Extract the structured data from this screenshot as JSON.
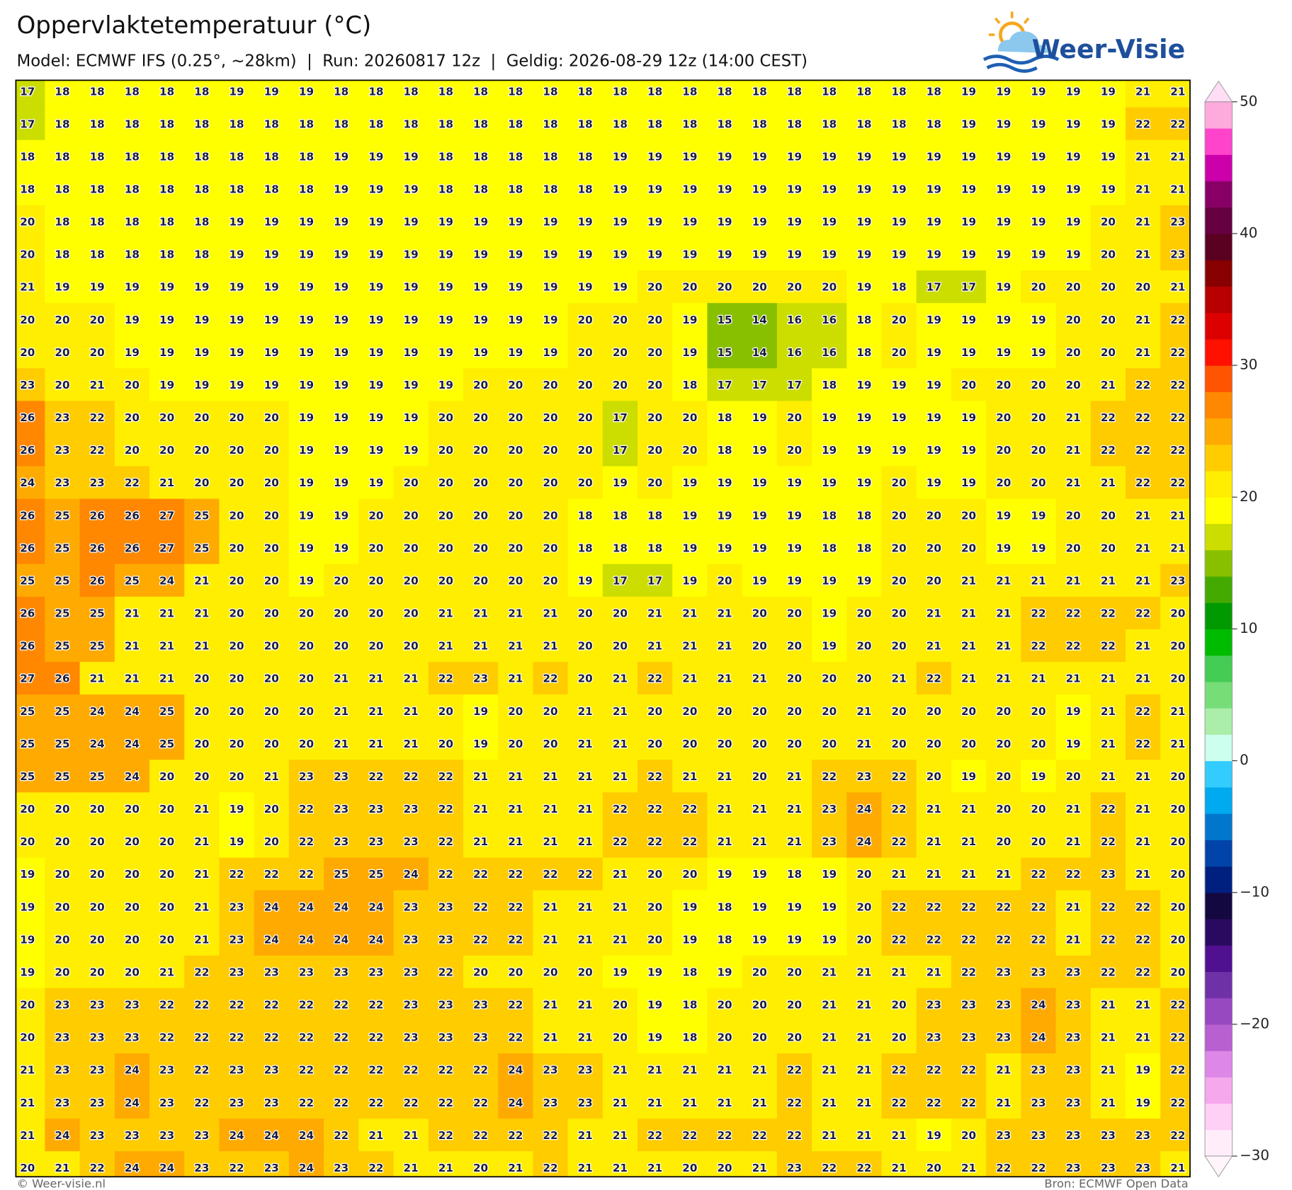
{
  "header": {
    "title": "Oppervlaktetemperatuur (°C)",
    "subtitle": "Model: ECMWF IFS (0.25°, ~28km)  |  Run: 20260817 12z  |  Geldig: 2026-08-29 12z (14:00 CEST)"
  },
  "logo": {
    "text": "Weer-Visie"
  },
  "footer": {
    "left": "© Weer-visie.nl",
    "right": "Bron: ECMWF Open Data"
  },
  "colorbar": {
    "clim": [
      -30,
      50
    ],
    "ticks": [
      {
        "value": -30,
        "label": "−30"
      },
      {
        "value": -20,
        "label": "−20"
      },
      {
        "value": -10,
        "label": "−10"
      },
      0,
      10,
      20,
      30,
      40,
      50
    ],
    "colors": [
      "#ffeefa",
      "#ffd0f5",
      "#f5a8ee",
      "#dd88e8",
      "#b860d0",
      "#9848c0",
      "#7030a8",
      "#501090",
      "#2a0a60",
      "#140840",
      "#002080",
      "#0044aa",
      "#0077cc",
      "#00aaee",
      "#33ccff",
      "#ccffee",
      "#aaeeaa",
      "#77dd77",
      "#44cc55",
      "#00bb00",
      "#009900",
      "#44aa00",
      "#88c000",
      "#ccdd00",
      "#ffff00",
      "#ffee00",
      "#ffcc00",
      "#ffaa00",
      "#ff8800",
      "#ff5500",
      "#ff1100",
      "#dd0000",
      "#b80000",
      "#880000",
      "#5a0020",
      "#660040",
      "#880066",
      "#cc00aa",
      "#ff44cc",
      "#ffaadd"
    ],
    "under": "#fff5fb",
    "over": "#ffddf5"
  },
  "grid": [
    [
      17,
      18,
      18,
      18,
      18,
      18,
      19,
      19,
      19,
      18,
      18,
      18,
      18,
      18,
      18,
      18,
      18,
      18,
      18,
      18,
      18,
      18,
      18,
      18,
      18,
      18,
      18,
      19,
      19,
      19,
      19,
      19,
      21,
      21
    ],
    [
      17,
      18,
      18,
      18,
      18,
      18,
      18,
      18,
      18,
      18,
      18,
      18,
      18,
      18,
      18,
      18,
      18,
      18,
      18,
      18,
      18,
      18,
      18,
      18,
      18,
      18,
      18,
      19,
      19,
      19,
      19,
      19,
      22,
      22
    ],
    [
      18,
      18,
      18,
      18,
      18,
      18,
      18,
      18,
      18,
      19,
      19,
      19,
      18,
      18,
      18,
      18,
      18,
      19,
      19,
      19,
      19,
      19,
      19,
      19,
      19,
      19,
      19,
      19,
      19,
      19,
      19,
      19,
      21,
      21
    ],
    [
      18,
      18,
      18,
      18,
      18,
      18,
      18,
      18,
      18,
      19,
      19,
      19,
      18,
      18,
      18,
      18,
      18,
      19,
      19,
      19,
      19,
      19,
      19,
      19,
      19,
      19,
      19,
      19,
      19,
      19,
      19,
      19,
      21,
      21
    ],
    [
      20,
      18,
      18,
      18,
      18,
      18,
      19,
      19,
      19,
      19,
      19,
      19,
      19,
      19,
      19,
      19,
      19,
      19,
      19,
      19,
      19,
      19,
      19,
      19,
      19,
      19,
      19,
      19,
      19,
      19,
      19,
      20,
      21,
      23
    ],
    [
      20,
      18,
      18,
      18,
      18,
      18,
      19,
      19,
      19,
      19,
      19,
      19,
      19,
      19,
      19,
      19,
      19,
      19,
      19,
      19,
      19,
      19,
      19,
      19,
      19,
      19,
      19,
      19,
      19,
      19,
      19,
      20,
      21,
      23
    ],
    [
      21,
      19,
      19,
      19,
      19,
      19,
      19,
      19,
      19,
      19,
      19,
      19,
      19,
      19,
      19,
      19,
      19,
      19,
      20,
      20,
      20,
      20,
      20,
      20,
      19,
      18,
      17,
      17,
      19,
      20,
      20,
      20,
      20,
      21
    ],
    [
      20,
      20,
      20,
      19,
      19,
      19,
      19,
      19,
      19,
      19,
      19,
      19,
      19,
      19,
      19,
      19,
      20,
      20,
      20,
      19,
      15,
      14,
      16,
      16,
      18,
      20,
      19,
      19,
      19,
      19,
      20,
      20,
      21,
      22
    ],
    [
      20,
      20,
      20,
      19,
      19,
      19,
      19,
      19,
      19,
      19,
      19,
      19,
      19,
      19,
      19,
      19,
      20,
      20,
      20,
      19,
      15,
      14,
      16,
      16,
      18,
      20,
      19,
      19,
      19,
      19,
      20,
      20,
      21,
      22
    ],
    [
      23,
      20,
      21,
      20,
      19,
      19,
      19,
      19,
      19,
      19,
      19,
      19,
      19,
      20,
      20,
      20,
      20,
      20,
      20,
      18,
      17,
      17,
      17,
      18,
      19,
      19,
      19,
      20,
      20,
      20,
      20,
      21,
      22,
      22
    ],
    [
      26,
      23,
      22,
      20,
      20,
      20,
      20,
      20,
      19,
      19,
      19,
      19,
      20,
      20,
      20,
      20,
      20,
      17,
      20,
      20,
      18,
      19,
      20,
      19,
      19,
      19,
      19,
      19,
      20,
      20,
      21,
      22,
      22,
      22
    ],
    [
      26,
      23,
      22,
      20,
      20,
      20,
      20,
      20,
      19,
      19,
      19,
      19,
      20,
      20,
      20,
      20,
      20,
      17,
      20,
      20,
      18,
      19,
      20,
      19,
      19,
      19,
      19,
      19,
      20,
      20,
      21,
      22,
      22,
      22
    ],
    [
      24,
      23,
      23,
      22,
      21,
      20,
      20,
      20,
      19,
      19,
      19,
      20,
      20,
      20,
      20,
      20,
      20,
      19,
      20,
      19,
      19,
      19,
      19,
      19,
      19,
      20,
      19,
      19,
      20,
      20,
      21,
      21,
      22,
      22
    ],
    [
      26,
      25,
      26,
      26,
      27,
      25,
      20,
      20,
      19,
      19,
      20,
      20,
      20,
      20,
      20,
      20,
      18,
      18,
      18,
      19,
      19,
      19,
      19,
      18,
      18,
      20,
      20,
      20,
      19,
      19,
      20,
      20,
      21,
      21
    ],
    [
      26,
      25,
      26,
      26,
      27,
      25,
      20,
      20,
      19,
      19,
      20,
      20,
      20,
      20,
      20,
      20,
      18,
      18,
      18,
      19,
      19,
      19,
      19,
      18,
      18,
      20,
      20,
      20,
      19,
      19,
      20,
      20,
      21,
      21
    ],
    [
      25,
      25,
      26,
      25,
      24,
      21,
      20,
      20,
      19,
      20,
      20,
      20,
      20,
      20,
      20,
      20,
      19,
      17,
      17,
      19,
      20,
      19,
      19,
      19,
      19,
      20,
      20,
      21,
      21,
      21,
      21,
      21,
      21,
      23
    ],
    [
      26,
      25,
      25,
      21,
      21,
      21,
      20,
      20,
      20,
      20,
      20,
      20,
      21,
      21,
      21,
      21,
      20,
      20,
      21,
      21,
      21,
      20,
      20,
      19,
      20,
      20,
      21,
      21,
      21,
      22,
      22,
      22,
      22,
      20
    ],
    [
      26,
      25,
      25,
      21,
      21,
      21,
      20,
      20,
      20,
      20,
      20,
      20,
      21,
      21,
      21,
      21,
      20,
      20,
      21,
      21,
      21,
      20,
      20,
      19,
      20,
      20,
      21,
      21,
      21,
      22,
      22,
      22,
      21,
      20
    ],
    [
      27,
      26,
      21,
      21,
      21,
      20,
      20,
      20,
      20,
      21,
      21,
      21,
      22,
      23,
      21,
      22,
      20,
      21,
      22,
      21,
      21,
      21,
      20,
      20,
      20,
      21,
      22,
      21,
      21,
      21,
      21,
      21,
      21,
      20
    ],
    [
      25,
      25,
      24,
      24,
      25,
      20,
      20,
      20,
      20,
      21,
      21,
      21,
      20,
      19,
      20,
      20,
      21,
      21,
      20,
      20,
      20,
      20,
      20,
      20,
      21,
      20,
      20,
      20,
      20,
      20,
      19,
      21,
      22,
      21
    ],
    [
      25,
      25,
      24,
      24,
      25,
      20,
      20,
      20,
      20,
      21,
      21,
      21,
      20,
      19,
      20,
      20,
      21,
      21,
      20,
      20,
      20,
      20,
      20,
      20,
      21,
      20,
      20,
      20,
      20,
      20,
      19,
      21,
      22,
      21
    ],
    [
      25,
      25,
      25,
      24,
      20,
      20,
      20,
      21,
      23,
      23,
      22,
      22,
      22,
      21,
      21,
      21,
      21,
      21,
      22,
      21,
      21,
      20,
      21,
      22,
      23,
      22,
      20,
      19,
      20,
      19,
      20,
      21,
      21,
      20
    ],
    [
      20,
      20,
      20,
      20,
      20,
      21,
      19,
      20,
      22,
      23,
      23,
      23,
      22,
      21,
      21,
      21,
      21,
      22,
      22,
      22,
      21,
      21,
      21,
      23,
      24,
      22,
      21,
      21,
      20,
      20,
      21,
      22,
      21,
      20
    ],
    [
      20,
      20,
      20,
      20,
      20,
      21,
      19,
      20,
      22,
      23,
      23,
      23,
      22,
      21,
      21,
      21,
      21,
      22,
      22,
      22,
      21,
      21,
      21,
      23,
      24,
      22,
      21,
      21,
      20,
      20,
      21,
      22,
      21,
      20
    ],
    [
      19,
      20,
      20,
      20,
      20,
      21,
      22,
      22,
      22,
      25,
      25,
      24,
      22,
      22,
      22,
      22,
      22,
      21,
      20,
      20,
      19,
      19,
      18,
      19,
      20,
      21,
      21,
      21,
      21,
      22,
      22,
      23,
      21,
      20
    ],
    [
      19,
      20,
      20,
      20,
      20,
      21,
      23,
      24,
      24,
      24,
      24,
      23,
      23,
      22,
      22,
      21,
      21,
      21,
      20,
      19,
      18,
      19,
      19,
      19,
      20,
      22,
      22,
      22,
      22,
      22,
      21,
      22,
      22,
      20
    ],
    [
      19,
      20,
      20,
      20,
      20,
      21,
      23,
      24,
      24,
      24,
      24,
      23,
      23,
      22,
      22,
      21,
      21,
      21,
      20,
      19,
      18,
      19,
      19,
      19,
      20,
      22,
      22,
      22,
      22,
      22,
      21,
      22,
      22,
      20
    ],
    [
      19,
      20,
      20,
      20,
      21,
      22,
      23,
      23,
      23,
      23,
      23,
      23,
      22,
      20,
      20,
      20,
      20,
      19,
      19,
      18,
      19,
      20,
      20,
      21,
      21,
      21,
      21,
      22,
      23,
      23,
      23,
      22,
      22,
      20
    ],
    [
      20,
      23,
      23,
      23,
      22,
      22,
      22,
      22,
      22,
      22,
      22,
      23,
      23,
      23,
      22,
      21,
      21,
      20,
      19,
      18,
      20,
      20,
      20,
      21,
      21,
      20,
      23,
      23,
      23,
      24,
      23,
      21,
      21,
      22
    ],
    [
      20,
      23,
      23,
      23,
      22,
      22,
      22,
      22,
      22,
      22,
      22,
      23,
      23,
      23,
      22,
      21,
      21,
      20,
      19,
      18,
      20,
      20,
      20,
      21,
      21,
      20,
      23,
      23,
      23,
      24,
      23,
      21,
      21,
      22
    ],
    [
      21,
      23,
      23,
      24,
      23,
      22,
      23,
      23,
      22,
      22,
      22,
      22,
      22,
      22,
      24,
      23,
      23,
      21,
      21,
      21,
      21,
      21,
      22,
      21,
      21,
      22,
      22,
      22,
      21,
      23,
      23,
      21,
      19,
      22
    ],
    [
      21,
      23,
      23,
      24,
      23,
      22,
      23,
      23,
      22,
      22,
      22,
      22,
      22,
      22,
      24,
      23,
      23,
      21,
      21,
      21,
      21,
      21,
      22,
      21,
      21,
      22,
      22,
      22,
      21,
      23,
      23,
      21,
      19,
      22
    ],
    [
      21,
      24,
      23,
      23,
      23,
      23,
      24,
      24,
      24,
      22,
      21,
      21,
      22,
      22,
      22,
      22,
      21,
      21,
      22,
      22,
      22,
      22,
      22,
      21,
      21,
      21,
      19,
      20,
      23,
      23,
      23,
      23,
      23,
      22
    ],
    [
      20,
      21,
      22,
      24,
      24,
      23,
      22,
      23,
      24,
      23,
      22,
      21,
      21,
      20,
      21,
      22,
      21,
      21,
      21,
      20,
      20,
      21,
      23,
      22,
      22,
      21,
      20,
      21,
      22,
      22,
      23,
      23,
      23,
      21
    ]
  ]
}
